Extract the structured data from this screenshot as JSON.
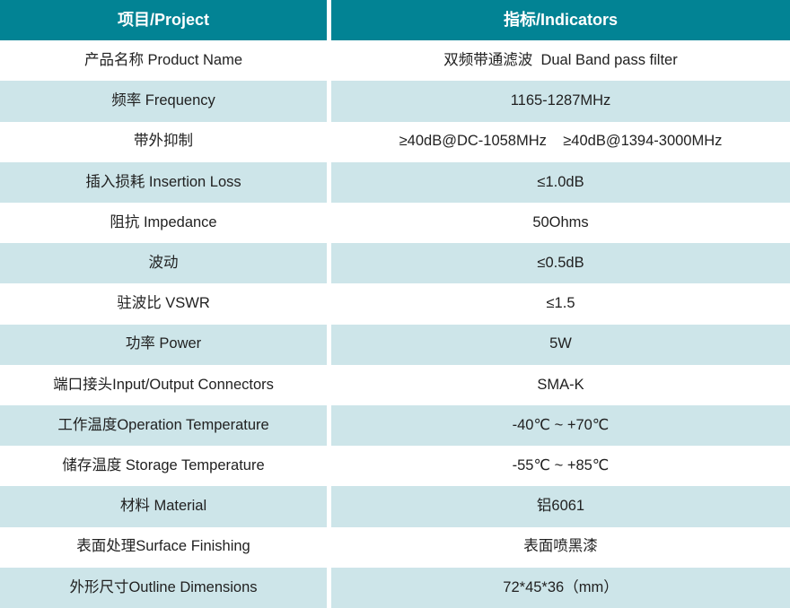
{
  "colors": {
    "header_bg": "#028394",
    "header_text": "#ffffff",
    "alt_row_bg": "#cde5e9",
    "row_bg": "#ffffff",
    "text": "#212121"
  },
  "table": {
    "header": {
      "project": "项目/Project",
      "indicators": "指标/Indicators"
    },
    "rows": [
      {
        "project": "产品名称 Product Name",
        "indicator": "双频带通滤波  Dual Band pass filter"
      },
      {
        "project": "频率 Frequency",
        "indicator": "1165-1287MHz"
      },
      {
        "project": "带外抑制",
        "indicator": "≥40dB@DC-1058MHz    ≥40dB@1394-3000MHz"
      },
      {
        "project": "插入损耗 Insertion Loss",
        "indicator": "≤1.0dB"
      },
      {
        "project": "阻抗 Impedance",
        "indicator": "50Ohms"
      },
      {
        "project": "波动",
        "indicator": "≤0.5dB"
      },
      {
        "project": "驻波比 VSWR",
        "indicator": "≤1.5"
      },
      {
        "project": "功率 Power",
        "indicator": "5W"
      },
      {
        "project": "端口接头Input/Output Connectors",
        "indicator": "SMA-K"
      },
      {
        "project": "工作温度Operation Temperature",
        "indicator": "-40℃ ~ +70℃"
      },
      {
        "project": "储存温度 Storage Temperature",
        "indicator": "-55℃ ~ +85℃"
      },
      {
        "project": "材料 Material",
        "indicator": "铝6061"
      },
      {
        "project": "表面处理Surface Finishing",
        "indicator": "表面喷黑漆"
      },
      {
        "project": "外形尺寸Outline Dimensions",
        "indicator": "72*45*36（mm）"
      }
    ]
  }
}
